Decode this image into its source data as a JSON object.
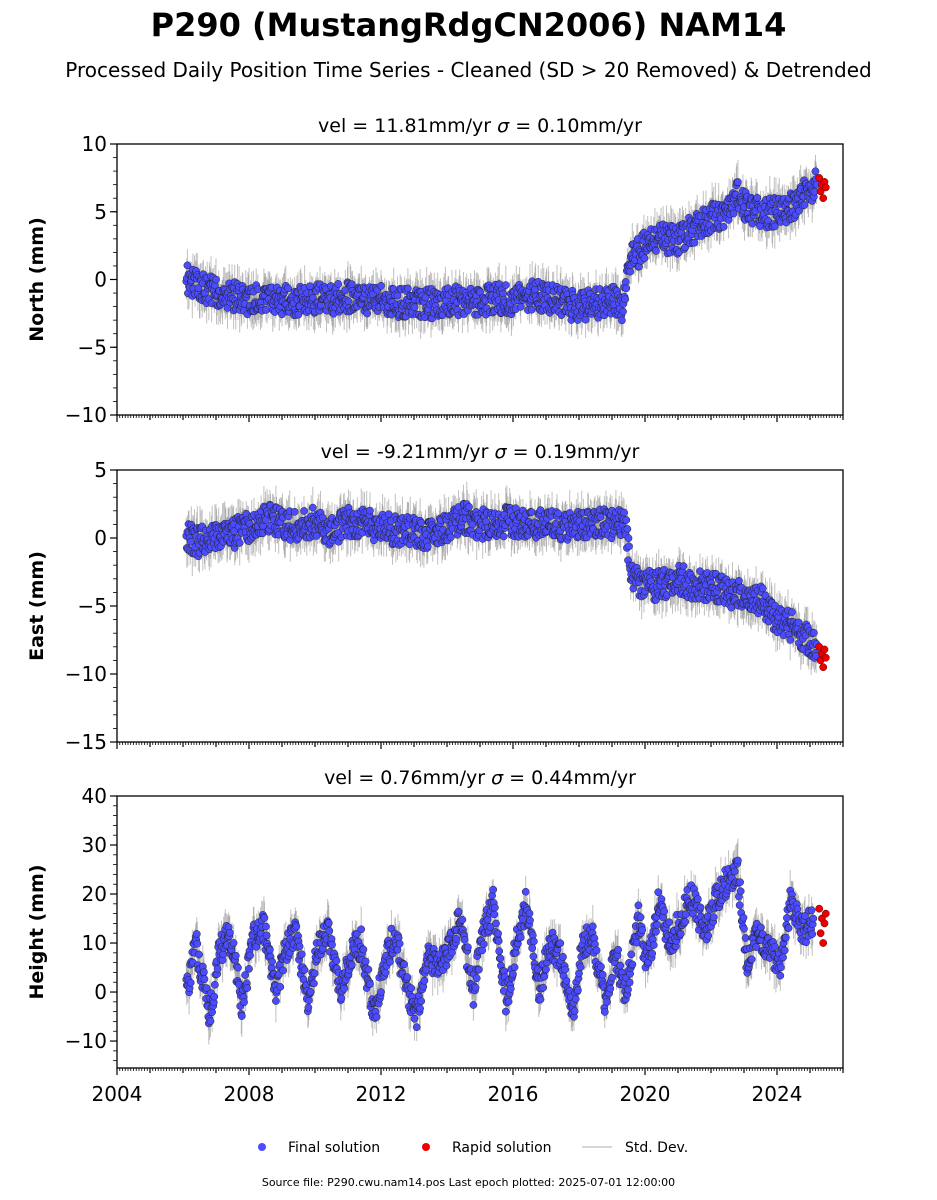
{
  "title": "P290 (MustangRdgCN2006) NAM14",
  "subtitle": "Processed Daily Position Time Series - Cleaned (SD > 20 Removed) & Detrended",
  "source_note": "Source file: P290.cwu.nam14.pos  Last epoch plotted: 2025-07-01 12:00:00",
  "legend": {
    "final": "Final solution",
    "rapid": "Rapid solution",
    "sd": "Std. Dev."
  },
  "colors": {
    "final": "#4b4bff",
    "rapid": "#ee0000",
    "sd": "#b8b8b8",
    "marker_edge": "#222222"
  },
  "chart_data": [
    {
      "type": "scatter",
      "component": "North",
      "title": "vel = 11.81mm/yr   σ = 0.10mm/yr",
      "title_parts": [
        "vel = 11.81mm/yr",
        "σ",
        " = 0.10mm/yr"
      ],
      "xlabel": "",
      "ylabel": "North (mm)",
      "xlim": [
        2004.0,
        2026.0
      ],
      "ylim": [
        -10,
        10
      ],
      "yticks": [
        -10,
        -5,
        0,
        5,
        10
      ],
      "yticklabels": [
        "−10",
        "−5",
        "0",
        "5",
        "10"
      ],
      "x_tick_labels_shown": false,
      "series": [
        {
          "name": "Final solution",
          "x": [
            2006.1,
            2006.5,
            2007.0,
            2007.5,
            2008.0,
            2008.5,
            2009.0,
            2009.5,
            2010.0,
            2010.5,
            2011.0,
            2011.5,
            2012.0,
            2012.5,
            2013.0,
            2013.5,
            2014.0,
            2014.5,
            2015.0,
            2015.5,
            2016.0,
            2016.5,
            2017.0,
            2017.5,
            2018.0,
            2018.5,
            2019.0,
            2019.3,
            2019.6,
            2020.0,
            2020.5,
            2021.0,
            2021.5,
            2022.0,
            2022.5,
            2022.8,
            2023.0,
            2023.5,
            2024.0,
            2024.5,
            2024.9,
            2025.2
          ],
          "y": [
            0.0,
            -0.5,
            -1.0,
            -1.2,
            -1.5,
            -1.3,
            -1.5,
            -1.6,
            -1.4,
            -1.5,
            -1.3,
            -1.6,
            -1.5,
            -1.7,
            -1.6,
            -1.8,
            -1.7,
            -1.5,
            -1.6,
            -1.4,
            -1.5,
            -1.2,
            -1.3,
            -1.8,
            -2.0,
            -1.8,
            -1.5,
            -2.0,
            1.5,
            2.5,
            3.0,
            3.0,
            3.8,
            4.5,
            5.0,
            6.5,
            5.5,
            4.8,
            5.0,
            5.5,
            6.5,
            7.0
          ]
        },
        {
          "name": "Rapid solution",
          "x": [
            2025.28,
            2025.32,
            2025.36,
            2025.4,
            2025.44,
            2025.48
          ],
          "y": [
            7.5,
            6.5,
            7.0,
            6.0,
            7.2,
            6.8
          ]
        }
      ]
    },
    {
      "type": "scatter",
      "component": "East",
      "title": "vel = -9.21mm/yr   σ = 0.19mm/yr",
      "title_parts": [
        "vel = -9.21mm/yr",
        "σ",
        " = 0.19mm/yr"
      ],
      "xlabel": "",
      "ylabel": "East (mm)",
      "xlim": [
        2004.0,
        2026.0
      ],
      "ylim": [
        -15,
        5
      ],
      "yticks": [
        -15,
        -10,
        -5,
        0,
        5
      ],
      "yticklabels": [
        "−15",
        "−10",
        "−5",
        "0",
        "5"
      ],
      "x_tick_labels_shown": false,
      "series": [
        {
          "name": "Final solution",
          "x": [
            2006.1,
            2006.5,
            2007.0,
            2007.5,
            2008.0,
            2008.5,
            2009.0,
            2009.5,
            2010.0,
            2010.5,
            2011.0,
            2011.5,
            2012.0,
            2012.5,
            2013.0,
            2013.5,
            2014.0,
            2014.5,
            2015.0,
            2015.5,
            2016.0,
            2016.5,
            2017.0,
            2017.5,
            2018.0,
            2018.5,
            2019.0,
            2019.4,
            2019.6,
            2020.0,
            2020.5,
            2021.0,
            2021.5,
            2022.0,
            2022.5,
            2023.0,
            2023.5,
            2024.0,
            2024.5,
            2024.9,
            2025.2
          ],
          "y": [
            0.0,
            -0.3,
            0.0,
            0.3,
            0.8,
            1.5,
            1.0,
            0.8,
            1.2,
            0.5,
            1.2,
            1.0,
            0.8,
            0.5,
            0.5,
            0.2,
            0.8,
            1.5,
            1.0,
            1.2,
            1.2,
            0.8,
            1.5,
            0.8,
            1.0,
            1.2,
            1.0,
            1.0,
            -3.0,
            -3.5,
            -3.5,
            -3.0,
            -3.5,
            -3.5,
            -4.0,
            -4.2,
            -4.5,
            -6.0,
            -6.5,
            -7.5,
            -7.8
          ]
        },
        {
          "name": "Rapid solution",
          "x": [
            2025.28,
            2025.32,
            2025.36,
            2025.4,
            2025.44,
            2025.48
          ],
          "y": [
            -8.0,
            -9.0,
            -8.5,
            -9.5,
            -8.2,
            -8.8
          ]
        }
      ]
    },
    {
      "type": "scatter",
      "component": "Height",
      "title": "vel = 0.76mm/yr   σ = 0.44mm/yr",
      "title_parts": [
        "vel = 0.76mm/yr",
        "σ",
        " = 0.44mm/yr"
      ],
      "xlabel": "",
      "ylabel": "Height (mm)",
      "xlim": [
        2004.0,
        2026.0
      ],
      "ylim": [
        -15.5,
        40
      ],
      "yticks": [
        -10,
        0,
        10,
        20,
        30,
        40
      ],
      "yticklabels": [
        "−10",
        "0",
        "10",
        "20",
        "30",
        "40"
      ],
      "x_tick_labels_shown": true,
      "xticks": [
        2004,
        2008,
        2012,
        2016,
        2020,
        2024
      ],
      "xticklabels": [
        "2004",
        "2008",
        "2012",
        "2016",
        "2020",
        "2024"
      ],
      "series": [
        {
          "name": "Final solution",
          "x": [
            2006.1,
            2006.4,
            2006.8,
            2007.1,
            2007.4,
            2007.8,
            2008.1,
            2008.4,
            2008.8,
            2009.1,
            2009.4,
            2009.8,
            2010.1,
            2010.4,
            2010.8,
            2011.1,
            2011.4,
            2011.8,
            2012.1,
            2012.4,
            2012.8,
            2013.1,
            2013.4,
            2013.8,
            2014.1,
            2014.4,
            2014.8,
            2015.1,
            2015.4,
            2015.8,
            2016.1,
            2016.4,
            2016.8,
            2017.1,
            2017.4,
            2017.8,
            2018.1,
            2018.4,
            2018.8,
            2019.1,
            2019.4,
            2019.8,
            2020.1,
            2020.4,
            2020.8,
            2021.1,
            2021.4,
            2021.8,
            2022.1,
            2022.4,
            2022.8,
            2023.1,
            2023.4,
            2023.8,
            2024.1,
            2024.4,
            2024.8,
            2025.1
          ],
          "y": [
            0.0,
            10.0,
            -5.0,
            8.0,
            12.0,
            -3.0,
            10.0,
            15.0,
            0.0,
            8.0,
            12.0,
            -2.0,
            10.0,
            12.0,
            0.0,
            8.0,
            10.0,
            -5.0,
            5.0,
            12.0,
            0.0,
            -5.0,
            8.0,
            5.0,
            10.0,
            15.0,
            0.0,
            12.0,
            18.0,
            -2.0,
            10.0,
            18.0,
            0.0,
            10.0,
            8.0,
            -5.0,
            10.0,
            12.0,
            -2.0,
            8.0,
            0.0,
            15.0,
            5.0,
            18.0,
            10.0,
            15.0,
            20.0,
            12.0,
            18.0,
            22.0,
            25.0,
            5.0,
            12.0,
            8.0,
            5.0,
            18.0,
            12.0,
            15.0
          ]
        },
        {
          "name": "Rapid solution",
          "x": [
            2025.28,
            2025.32,
            2025.36,
            2025.4,
            2025.44,
            2025.48
          ],
          "y": [
            17.0,
            12.0,
            15.0,
            10.0,
            14.0,
            16.0
          ]
        }
      ]
    }
  ]
}
